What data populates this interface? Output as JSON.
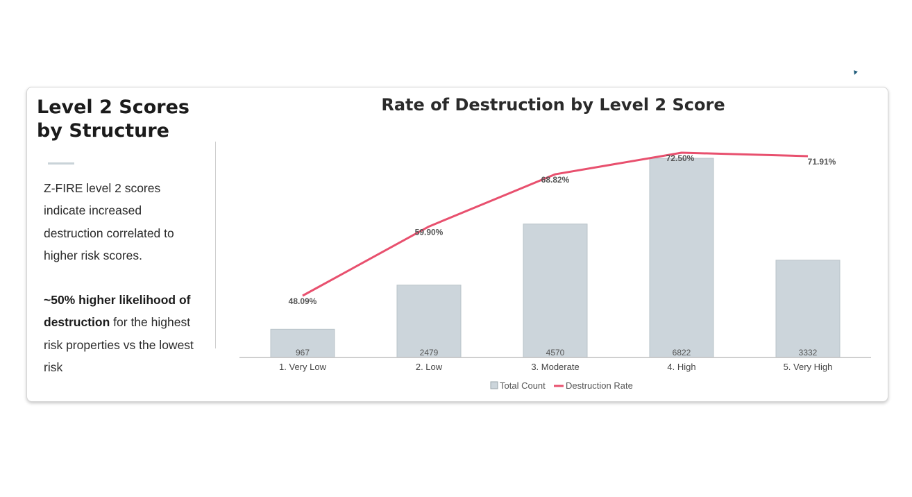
{
  "panel": {
    "title_line1": "Level 2 Scores",
    "title_line2": "by Structure",
    "para1_lines": [
      "Z-FIRE level 2 scores",
      "indicate increased",
      "destruction correlated to",
      "higher risk scores."
    ],
    "para2_bold1": "~50% higher likelihood of",
    "para2_bold2": "destruction",
    "para2_rest2": " for the highest",
    "para2_line3": "risk properties vs the lowest",
    "para2_line4": "risk"
  },
  "chart_data": {
    "type": "bar",
    "title": "Rate of Destruction by Level 2 Score",
    "categories": [
      "1. Very Low",
      "2. Low",
      "3. Moderate",
      "4. High",
      "5. Very High"
    ],
    "series": [
      {
        "name": "Total Count",
        "type": "bar",
        "values": [
          967,
          2479,
          4570,
          6822,
          3332
        ],
        "labels": [
          "967",
          "2479",
          "4570",
          "6822",
          "3332"
        ]
      },
      {
        "name": "Destruction Rate",
        "type": "line",
        "values": [
          48.09,
          59.9,
          68.82,
          72.5,
          71.91
        ],
        "labels": [
          "48.09%",
          "59.90%",
          "68.82%",
          "72.50%",
          "71.91%"
        ]
      }
    ],
    "bar_ylim": [
      0,
      7000
    ],
    "line_ylim": [
      40,
      75
    ],
    "legend_position": "bottom",
    "grid": false,
    "colors": {
      "bar": "#ccd5db",
      "bar_border": "#b9c3c9",
      "line": "#e8506e",
      "axis": "#bfbfbf",
      "text": "#555555"
    }
  }
}
